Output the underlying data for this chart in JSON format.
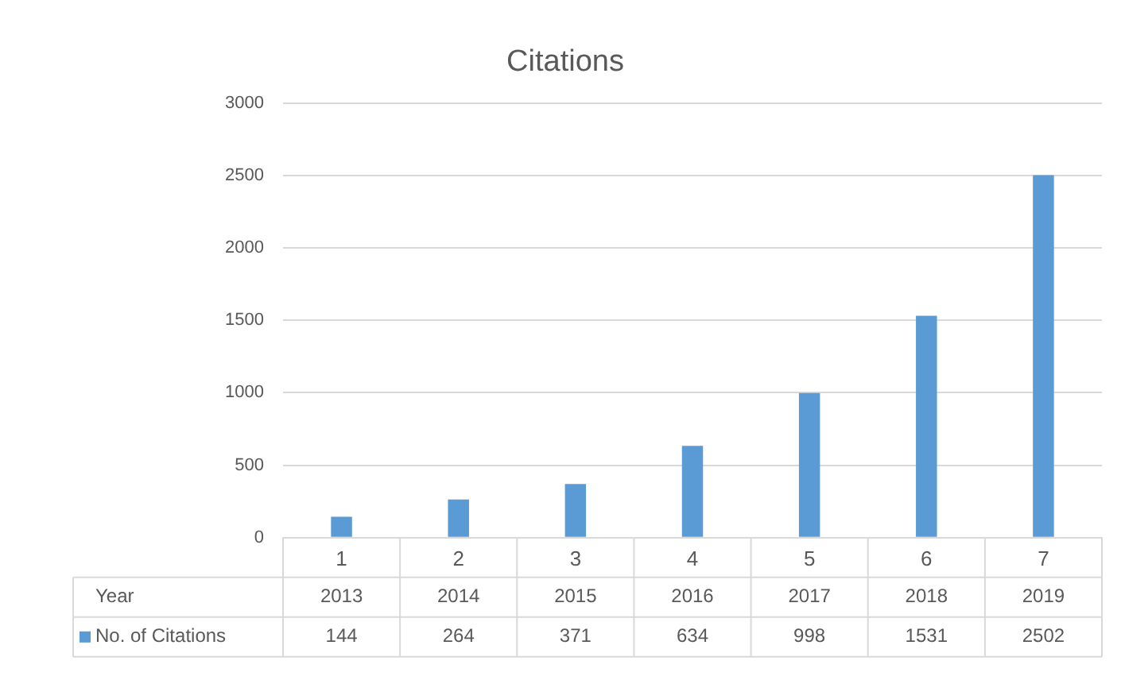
{
  "chart_data": {
    "type": "bar",
    "title": "Citations",
    "categories": [
      "1",
      "2",
      "3",
      "4",
      "5",
      "6",
      "7"
    ],
    "series": [
      {
        "name": "No. of Citations",
        "color": "#5b9bd5",
        "values": [
          144,
          264,
          371,
          634,
          998,
          1531,
          2502
        ]
      }
    ],
    "ylim": [
      0,
      3000
    ],
    "yticks": [
      0,
      500,
      1000,
      1500,
      2000,
      2500,
      3000
    ],
    "grid": "y",
    "legend": "bottom",
    "data_labels": true,
    "annotations": [
      "Year",
      "2013",
      "2014",
      "2015",
      "2016",
      "2017",
      "2018",
      "2019"
    ]
  }
}
